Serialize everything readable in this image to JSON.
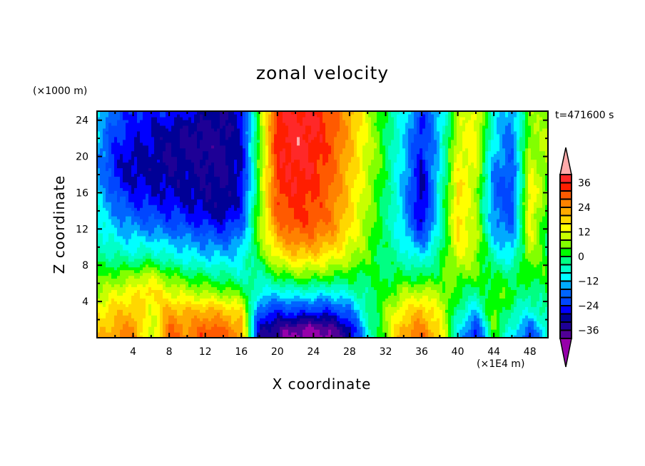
{
  "chart_data": {
    "type": "heatmap",
    "title": "zonal velocity",
    "xlabel": "X coordinate",
    "ylabel": "Z coordinate",
    "x_unit": "(×1E4 m)",
    "y_unit": "(×1000 m)",
    "time_label": "t=471600 s",
    "xlim": [
      0,
      50
    ],
    "ylim": [
      0,
      25
    ],
    "x_ticks": [
      4,
      8,
      12,
      16,
      20,
      24,
      28,
      32,
      36,
      40,
      44,
      48
    ],
    "x_tick_labels": [
      "4",
      "8",
      "12",
      "16",
      "20",
      "24",
      "28",
      "32",
      "36",
      "40",
      "44",
      "48"
    ],
    "y_ticks": [
      4,
      8,
      12,
      16,
      20,
      24
    ],
    "y_tick_labels": [
      "4",
      "8",
      "12",
      "16",
      "20",
      "24"
    ],
    "grid": false,
    "colorbar": {
      "position": "right",
      "levels": [
        -40,
        -36,
        -32,
        -28,
        -24,
        -20,
        -16,
        -12,
        -8,
        -4,
        0,
        4,
        8,
        12,
        16,
        20,
        24,
        28,
        32,
        36,
        40
      ],
      "tick_values": [
        36,
        24,
        12,
        0,
        -12,
        -24,
        -36
      ],
      "tick_labels": [
        "36",
        "24",
        "12",
        "0",
        "−12",
        "−24",
        "−36"
      ],
      "colors": [
        "#500096",
        "#1e0096",
        "#000096",
        "#0000ff",
        "#0046ff",
        "#0064ff",
        "#00aaff",
        "#00ffff",
        "#00ffc8",
        "#00ff82",
        "#00ff00",
        "#82ff00",
        "#c8ff00",
        "#ffff00",
        "#ffd700",
        "#ffaa00",
        "#ff8200",
        "#ff5a00",
        "#ff1e00",
        "#ff2828"
      ],
      "over_color": "#ffaaaa",
      "under_color": "#9600aa"
    },
    "x": [
      0,
      2,
      4,
      6,
      8,
      10,
      12,
      14,
      16,
      18,
      20,
      22,
      24,
      26,
      28,
      30,
      32,
      34,
      36,
      38,
      40,
      42,
      44,
      46,
      48,
      50
    ],
    "z": [
      25,
      23,
      21,
      19,
      17,
      15,
      13,
      11,
      9,
      7,
      5,
      3,
      1,
      0
    ],
    "values": [
      [
        -10,
        -20,
        -24,
        -26,
        -24,
        -26,
        -30,
        -32,
        -26,
        4,
        34,
        37,
        36,
        30,
        22,
        10,
        0,
        -10,
        -22,
        -14,
        8,
        14,
        -8,
        -16,
        6,
        8
      ],
      [
        -12,
        -22,
        -26,
        -28,
        -30,
        -32,
        -33,
        -33,
        -28,
        4,
        35,
        38,
        37,
        31,
        22,
        11,
        0,
        -10,
        -26,
        -12,
        10,
        14,
        -10,
        -18,
        6,
        8
      ],
      [
        -14,
        -24,
        -28,
        -28,
        -32,
        -33,
        -34,
        -33,
        -28,
        4,
        35,
        38,
        36,
        30,
        21,
        10,
        0,
        -12,
        -26,
        -10,
        12,
        14,
        -12,
        -18,
        8,
        8
      ],
      [
        -14,
        -26,
        -30,
        -30,
        -32,
        -30,
        -33,
        -33,
        -28,
        4,
        34,
        37,
        35,
        29,
        20,
        10,
        0,
        -12,
        -28,
        -10,
        14,
        12,
        -16,
        -20,
        10,
        6
      ],
      [
        -12,
        -24,
        -28,
        -28,
        -30,
        -30,
        -32,
        -32,
        -28,
        4,
        33,
        36,
        34,
        28,
        20,
        9,
        -2,
        -14,
        -30,
        -8,
        16,
        10,
        -18,
        -22,
        14,
        4
      ],
      [
        -10,
        -18,
        -24,
        -26,
        -26,
        -28,
        -30,
        -32,
        -26,
        6,
        31,
        34,
        32,
        27,
        18,
        8,
        -2,
        -14,
        -30,
        -8,
        18,
        8,
        -18,
        -22,
        16,
        2
      ],
      [
        -8,
        -14,
        -18,
        -20,
        -22,
        -24,
        -26,
        -28,
        -22,
        6,
        28,
        32,
        31,
        26,
        17,
        7,
        -2,
        -14,
        -28,
        -8,
        18,
        8,
        -16,
        -20,
        14,
        0
      ],
      [
        -6,
        -10,
        -12,
        -12,
        -14,
        -16,
        -18,
        -20,
        -16,
        6,
        22,
        27,
        26,
        22,
        14,
        6,
        -2,
        -10,
        -20,
        -6,
        16,
        10,
        -12,
        -16,
        12,
        -2
      ],
      [
        -2,
        -4,
        -6,
        -4,
        -8,
        -10,
        -12,
        -12,
        -10,
        2,
        14,
        18,
        18,
        14,
        10,
        4,
        -2,
        -6,
        -10,
        -2,
        12,
        8,
        -6,
        -10,
        8,
        0
      ],
      [
        2,
        4,
        6,
        10,
        4,
        0,
        -2,
        -4,
        -6,
        -4,
        2,
        6,
        6,
        4,
        2,
        0,
        0,
        0,
        -2,
        2,
        6,
        4,
        0,
        -2,
        4,
        2
      ],
      [
        8,
        12,
        14,
        18,
        12,
        10,
        8,
        6,
        4,
        -10,
        -10,
        -8,
        -8,
        -10,
        -6,
        -2,
        2,
        8,
        10,
        8,
        2,
        -4,
        4,
        2,
        -4,
        0
      ],
      [
        14,
        18,
        20,
        12,
        22,
        20,
        22,
        20,
        16,
        -20,
        -24,
        -22,
        -24,
        -24,
        -18,
        -4,
        6,
        16,
        20,
        12,
        -4,
        -12,
        6,
        -4,
        -8,
        -2
      ],
      [
        18,
        22,
        26,
        8,
        28,
        24,
        30,
        28,
        22,
        -30,
        -36,
        -40,
        -42,
        -38,
        -30,
        -8,
        8,
        22,
        26,
        16,
        -8,
        -24,
        4,
        -8,
        -20,
        -6
      ],
      [
        20,
        24,
        28,
        6,
        30,
        26,
        32,
        30,
        24,
        -32,
        -38,
        -42,
        -44,
        -40,
        -32,
        -10,
        8,
        24,
        28,
        18,
        -10,
        -28,
        2,
        -10,
        -24,
        -8
      ]
    ]
  }
}
